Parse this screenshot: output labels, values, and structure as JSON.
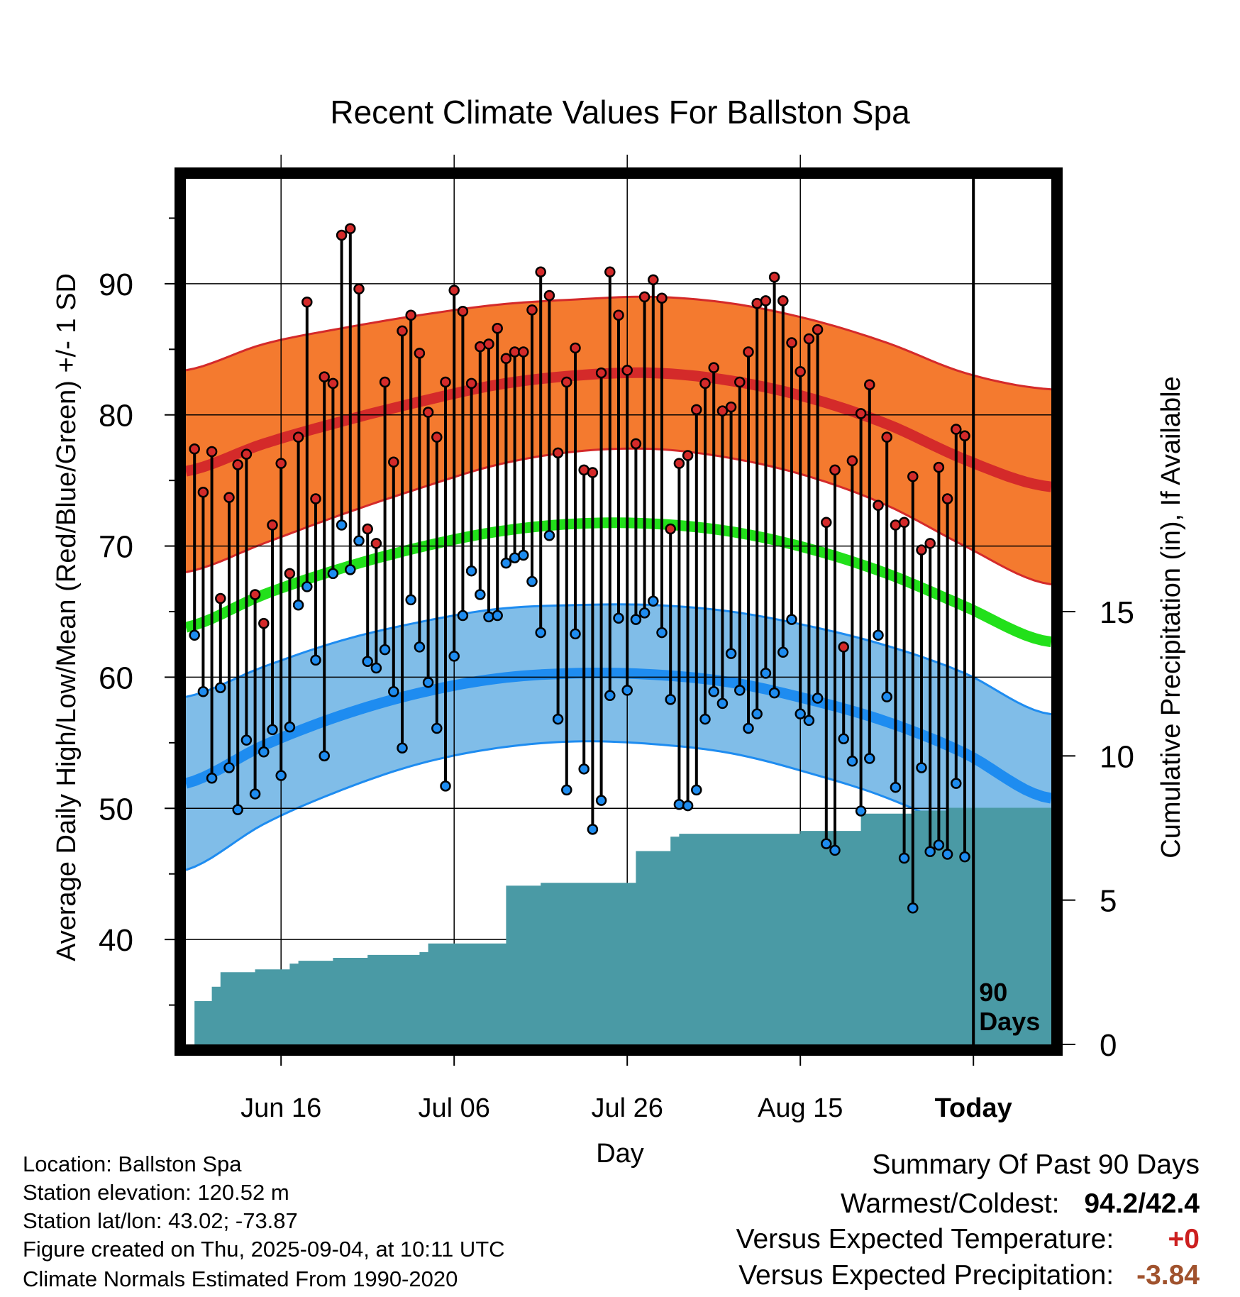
{
  "chart_data": {
    "type": "line",
    "title": "Recent Climate Values For Ballston Spa",
    "xlabel": "Day",
    "ylabel": "Average Daily High/Low/Mean (Red/Blue/Green) +/- 1 SD",
    "ylabel_right": "Cumulative Precipitation (in), If Available",
    "x_tick_labels": [
      "Jun 16",
      "Jul 06",
      "Jul 26",
      "Aug 15",
      "Today"
    ],
    "x_tick_days": [
      11,
      31,
      51,
      71,
      91
    ],
    "xlim": [
      0,
      100
    ],
    "ylim": [
      32,
      98
    ],
    "y_ticks": [
      40,
      50,
      60,
      70,
      80,
      90
    ],
    "y2lim": [
      0,
      30
    ],
    "y2_ticks": [
      0,
      5,
      10,
      15
    ],
    "today_day": 91,
    "today_label_1": "90",
    "today_label_2": "Days",
    "normal_high": [
      75.7,
      77.8,
      79.5,
      81.0,
      82.3,
      83.0,
      83.2,
      82.6,
      81.3,
      79.3,
      76.6,
      74.6
    ],
    "normal_high_sd": [
      7.7,
      7.6,
      7.1,
      6.6,
      6.1,
      5.8,
      5.8,
      5.9,
      6.0,
      6.2,
      6.6,
      7.4
    ],
    "normal_low": [
      51.9,
      54.8,
      57.1,
      58.8,
      59.9,
      60.3,
      60.2,
      59.6,
      58.3,
      56.6,
      54.2,
      50.9
    ],
    "normal_low_sd": [
      6.6,
      6.0,
      5.7,
      5.4,
      5.3,
      5.2,
      5.3,
      5.4,
      5.6,
      5.8,
      6.1,
      6.4
    ],
    "normal_mean": [
      63.8,
      66.3,
      68.3,
      69.9,
      71.1,
      71.7,
      71.7,
      71.1,
      69.8,
      67.9,
      65.4,
      62.8
    ],
    "normal_days": [
      0,
      9,
      18,
      27,
      36,
      45,
      54,
      63,
      72,
      81,
      90,
      99
    ],
    "series": [
      {
        "values": [
          77.4,
          74.1,
          77.2,
          66.0,
          73.7,
          76.2,
          77.0,
          66.3,
          64.1,
          71.6,
          76.3,
          67.9,
          78.3,
          88.6,
          73.6,
          82.9,
          82.4,
          93.7,
          94.2,
          89.6,
          71.3,
          70.2,
          82.5,
          76.4,
          86.4,
          87.6,
          84.7,
          80.2,
          78.3,
          82.5,
          89.5,
          87.9,
          82.4,
          85.2,
          85.4,
          86.6,
          84.3,
          84.8,
          84.8,
          88.0,
          90.9,
          89.1,
          77.1,
          82.5,
          85.1,
          75.8,
          75.6,
          83.2,
          90.9,
          87.6,
          83.4,
          77.8,
          89.0,
          90.3,
          88.9,
          71.3,
          76.3,
          76.9,
          80.4,
          82.4,
          83.6,
          80.3,
          80.6,
          82.5,
          84.8,
          88.5,
          88.7,
          90.5,
          88.7,
          85.5,
          83.3,
          85.8,
          86.5,
          71.8,
          75.8,
          62.3,
          76.5,
          80.1,
          82.3,
          73.1,
          78.3,
          71.6,
          71.8,
          75.3,
          69.7,
          70.2,
          76.0,
          73.6,
          78.9,
          78.4
        ]
      },
      {
        "values": [
          63.2,
          58.9,
          52.3,
          59.2,
          53.1,
          49.9,
          55.2,
          51.1,
          54.3,
          56.0,
          52.5,
          56.2,
          65.5,
          66.9,
          61.3,
          54.0,
          67.9,
          71.6,
          68.2,
          70.4,
          61.2,
          60.7,
          62.1,
          58.9,
          54.6,
          65.9,
          62.3,
          59.6,
          56.1,
          51.7,
          61.6,
          64.7,
          68.1,
          66.3,
          64.6,
          64.7,
          68.7,
          69.1,
          69.3,
          67.3,
          63.4,
          70.8,
          56.8,
          51.4,
          63.3,
          53.0,
          48.4,
          50.6,
          58.6,
          64.5,
          59.0,
          64.4,
          64.9,
          65.8,
          63.4,
          58.3,
          50.3,
          50.2,
          51.4,
          56.8,
          58.9,
          58.0,
          61.8,
          59.0,
          56.1,
          57.2,
          60.3,
          58.8,
          61.9,
          64.4,
          57.2,
          56.7,
          58.4,
          47.3,
          46.8,
          55.3,
          53.6,
          49.8,
          53.8,
          63.2,
          58.5,
          51.6,
          46.2,
          42.4,
          53.1,
          46.7,
          47.2,
          46.5,
          51.9,
          46.3
        ]
      }
    ],
    "precip_x": [
      0,
      1,
      2,
      3,
      4,
      5,
      6,
      7,
      8,
      9,
      10,
      11,
      12,
      13,
      14,
      15,
      16,
      17,
      18,
      19,
      20,
      21,
      22,
      23,
      24,
      25,
      26,
      27,
      28,
      29,
      30,
      31,
      32,
      33,
      34,
      35,
      36,
      37,
      38,
      39,
      40,
      41,
      42,
      43,
      44,
      45,
      46,
      47,
      48,
      49,
      50,
      51,
      52,
      53,
      54,
      55,
      56,
      57,
      58,
      59,
      60,
      61,
      62,
      63,
      64,
      65,
      66,
      67,
      68,
      69,
      70,
      71,
      72,
      73,
      74,
      75,
      76,
      77,
      78,
      79,
      80,
      81,
      82,
      83,
      84,
      85,
      86,
      87,
      88,
      89,
      90,
      91,
      100
    ],
    "precip_cum": [
      0.0,
      1.5,
      1.5,
      2.0,
      2.5,
      2.5,
      2.5,
      2.5,
      2.6,
      2.6,
      2.6,
      2.6,
      2.8,
      2.9,
      2.9,
      2.9,
      2.9,
      3.0,
      3.0,
      3.0,
      3.0,
      3.1,
      3.1,
      3.1,
      3.1,
      3.1,
      3.1,
      3.2,
      3.5,
      3.5,
      3.5,
      3.5,
      3.5,
      3.5,
      3.5,
      3.5,
      3.5,
      5.5,
      5.5,
      5.5,
      5.5,
      5.6,
      5.6,
      5.6,
      5.6,
      5.6,
      5.6,
      5.6,
      5.6,
      5.6,
      5.6,
      5.6,
      6.7,
      6.7,
      6.7,
      6.7,
      7.2,
      7.3,
      7.3,
      7.3,
      7.3,
      7.3,
      7.3,
      7.3,
      7.3,
      7.3,
      7.3,
      7.3,
      7.3,
      7.3,
      7.3,
      7.4,
      7.4,
      7.4,
      7.4,
      7.4,
      7.4,
      7.4,
      8.0,
      8.0,
      8.0,
      8.0,
      8.0,
      8.0,
      8.1,
      8.1,
      8.1,
      8.1,
      8.2,
      8.2,
      8.2,
      8.2,
      8.2
    ]
  },
  "info": {
    "location": "Location: Ballston Spa",
    "elevation": "Station elevation: 120.52 m",
    "latlon": "Station lat/lon: 43.02; -73.87",
    "created": "Figure created on Thu, 2025-09-04, at 10:11 UTC",
    "normals": "Climate Normals Estimated From 1990-2020"
  },
  "summary": {
    "title": "Summary Of Past 90 Days",
    "warm_cold_label": "Warmest/Coldest:",
    "warm_cold_value": "94.2/42.4",
    "temp_label": "Versus Expected Temperature:",
    "temp_value": "+0",
    "precip_label": "Versus Expected Precipitation:",
    "precip_value": "-3.84"
  },
  "colors": {
    "high_band": "#f47a2f",
    "high_line": "#d42a2a",
    "low_band": "#80bde8",
    "low_line": "#1e8cf0",
    "mean_line": "#22e01a",
    "precip": "#4a9aa5",
    "temp_value": "#cc1f1f",
    "precip_value": "#a0522d"
  }
}
